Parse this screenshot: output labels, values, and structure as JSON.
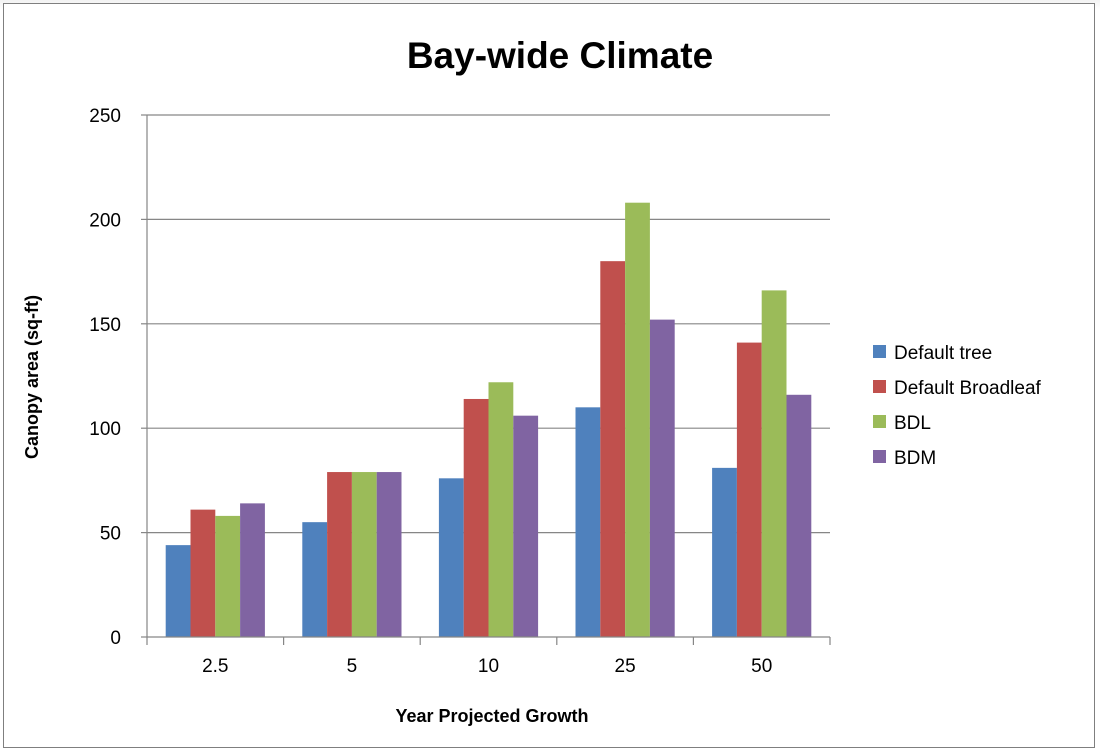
{
  "chart_data": {
    "type": "bar",
    "title": "Bay-wide Climate",
    "xlabel": "Year Projected Growth",
    "ylabel": "Canopy area (sq-ft)",
    "categories": [
      "2.5",
      "5",
      "10",
      "25",
      "50"
    ],
    "ylim": [
      0,
      250
    ],
    "yticks": [
      0,
      50,
      100,
      150,
      200,
      250
    ],
    "grid": true,
    "legend_position": "right",
    "series": [
      {
        "name": "Default tree",
        "color": "#4f81bd",
        "values": [
          44,
          55,
          76,
          110,
          81
        ]
      },
      {
        "name": "Default Broadleaf",
        "color": "#c0504d",
        "values": [
          61,
          79,
          114,
          180,
          141
        ]
      },
      {
        "name": "BDL",
        "color": "#9bbb59",
        "values": [
          58,
          79,
          122,
          208,
          166
        ]
      },
      {
        "name": "BDM",
        "color": "#8064a2",
        "values": [
          64,
          79,
          106,
          152,
          116
        ]
      }
    ]
  }
}
